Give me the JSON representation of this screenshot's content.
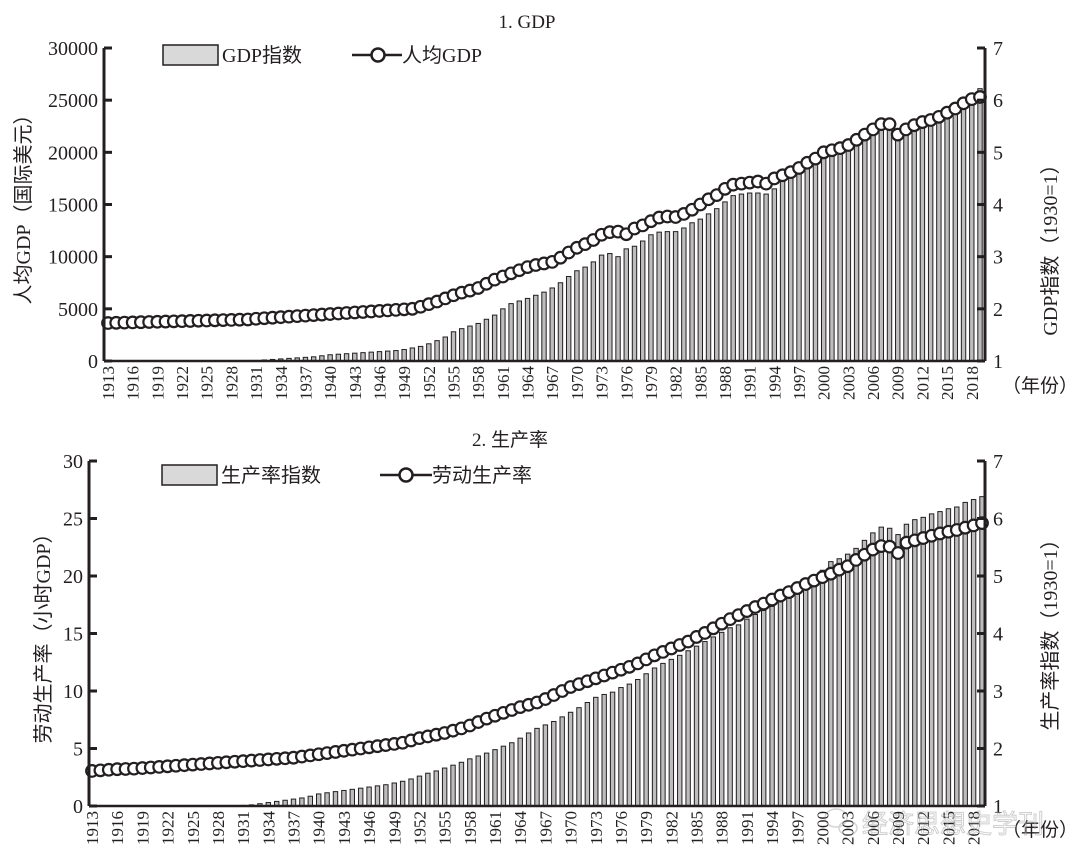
{
  "watermark": "经济思想史学刊",
  "x_unit_label": "（年份）",
  "years": [
    1913,
    1914,
    1915,
    1916,
    1917,
    1918,
    1919,
    1920,
    1921,
    1922,
    1923,
    1924,
    1925,
    1926,
    1927,
    1928,
    1929,
    1930,
    1931,
    1932,
    1933,
    1934,
    1935,
    1936,
    1937,
    1938,
    1939,
    1940,
    1941,
    1942,
    1943,
    1944,
    1945,
    1946,
    1947,
    1948,
    1949,
    1950,
    1951,
    1952,
    1953,
    1954,
    1955,
    1956,
    1957,
    1958,
    1959,
    1960,
    1961,
    1962,
    1963,
    1964,
    1965,
    1966,
    1967,
    1968,
    1969,
    1970,
    1971,
    1972,
    1973,
    1974,
    1975,
    1976,
    1977,
    1978,
    1979,
    1980,
    1981,
    1982,
    1983,
    1984,
    1985,
    1986,
    1987,
    1988,
    1989,
    1990,
    1991,
    1992,
    1993,
    1994,
    1995,
    1996,
    1997,
    1998,
    1999,
    2000,
    2001,
    2002,
    2003,
    2004,
    2005,
    2006,
    2007,
    2008,
    2009,
    2010,
    2011,
    2012,
    2013,
    2014,
    2015,
    2016,
    2017,
    2018,
    2019
  ],
  "chart_data": [
    {
      "type": "bar+line",
      "title": "1. GDP",
      "xlabel": "（年份）",
      "xticks": [
        "1913",
        "1916",
        "1919",
        "1922",
        "1925",
        "1928",
        "1931",
        "1934",
        "1937",
        "1940",
        "1943",
        "1946",
        "1949",
        "1952",
        "1955",
        "1958",
        "1961",
        "1964",
        "1967",
        "1970",
        "1973",
        "1976",
        "1979",
        "1982",
        "1985",
        "1988",
        "1991",
        "1994",
        "1997",
        "2000",
        "2003",
        "2006",
        "2009",
        "2012",
        "2015",
        "2018"
      ],
      "ylabel_left": "人均GDP（国际美元）",
      "ylabel_right": "GDP指数（1930=1）",
      "ylim_left": [
        0,
        30000
      ],
      "yticks_left": [
        "0",
        "5000",
        "10000",
        "15000",
        "20000",
        "25000",
        "30000"
      ],
      "ylim_right": [
        1,
        7
      ],
      "yticks_right": [
        "1",
        "2",
        "3",
        "4",
        "5",
        "6",
        "7"
      ],
      "legend_position": "top-left",
      "series": [
        {
          "name": "GDP指数",
          "kind": "bar",
          "axis": "right",
          "values": [
            1,
            1,
            1,
            1,
            1,
            1,
            1,
            1,
            1,
            1,
            1,
            1,
            1,
            1,
            1,
            1,
            1,
            1,
            1.01,
            1.02,
            1.03,
            1.04,
            1.05,
            1.06,
            1.07,
            1.08,
            1.1,
            1.12,
            1.13,
            1.14,
            1.15,
            1.16,
            1.17,
            1.18,
            1.19,
            1.2,
            1.22,
            1.25,
            1.28,
            1.33,
            1.39,
            1.46,
            1.56,
            1.62,
            1.67,
            1.72,
            1.8,
            1.88,
            2.0,
            2.1,
            2.15,
            2.2,
            2.26,
            2.32,
            2.4,
            2.5,
            2.62,
            2.73,
            2.8,
            2.9,
            3.03,
            3.06,
            3.0,
            3.15,
            3.2,
            3.3,
            3.42,
            3.47,
            3.48,
            3.48,
            3.55,
            3.65,
            3.72,
            3.82,
            3.92,
            4.05,
            4.17,
            4.2,
            4.22,
            4.22,
            4.2,
            4.3,
            4.45,
            4.55,
            4.65,
            4.75,
            4.88,
            5.0,
            5.05,
            5.1,
            5.2,
            5.3,
            5.42,
            5.52,
            5.6,
            5.58,
            5.28,
            5.42,
            5.5,
            5.55,
            5.6,
            5.68,
            5.78,
            5.88,
            5.98,
            6.1,
            6.22
          ]
        },
        {
          "name": "人均GDP",
          "kind": "line",
          "axis": "left",
          "values": [
            3640,
            3660,
            3680,
            3700,
            3720,
            3740,
            3760,
            3780,
            3800,
            3820,
            3840,
            3860,
            3880,
            3900,
            3920,
            3940,
            3960,
            3980,
            4050,
            4100,
            4150,
            4200,
            4250,
            4300,
            4350,
            4400,
            4450,
            4500,
            4550,
            4600,
            4650,
            4700,
            4750,
            4800,
            4850,
            4900,
            4950,
            5000,
            5200,
            5450,
            5700,
            6000,
            6300,
            6550,
            6750,
            7000,
            7400,
            7800,
            8100,
            8400,
            8700,
            9000,
            9200,
            9350,
            9500,
            9900,
            10400,
            10850,
            11200,
            11600,
            12100,
            12350,
            12400,
            12150,
            12700,
            13000,
            13400,
            13750,
            13850,
            13800,
            14100,
            14500,
            15000,
            15500,
            15900,
            16500,
            16900,
            17000,
            17100,
            17200,
            17000,
            17500,
            17800,
            18100,
            18500,
            19000,
            19400,
            20000,
            20200,
            20400,
            20700,
            21200,
            21700,
            22200,
            22700,
            22700,
            21700,
            22200,
            22600,
            22900,
            23100,
            23400,
            23800,
            24200,
            24700,
            25100,
            25300
          ]
        }
      ]
    },
    {
      "type": "bar+line",
      "title": "2. 生产率",
      "xlabel": "（年份）",
      "xticks": [
        "1913",
        "1916",
        "1919",
        "1922",
        "1925",
        "1928",
        "1931",
        "1934",
        "1937",
        "1940",
        "1943",
        "1946",
        "1949",
        "1952",
        "1955",
        "1958",
        "1961",
        "1964",
        "1967",
        "1970",
        "1973",
        "1976",
        "1979",
        "1982",
        "1985",
        "1988",
        "1991",
        "1994",
        "1997",
        "2000",
        "2003",
        "2006",
        "2009",
        "2012",
        "2015",
        "2018"
      ],
      "ylabel_left": "劳动生产率（小时GDP）",
      "ylabel_right": "生产率指数（1930=1）",
      "ylim_left": [
        0,
        30
      ],
      "yticks_left": [
        "0",
        "5",
        "10",
        "15",
        "20",
        "25",
        "30"
      ],
      "ylim_right": [
        1,
        7
      ],
      "yticks_right": [
        "1",
        "2",
        "3",
        "4",
        "5",
        "6",
        "7"
      ],
      "legend_position": "top-left",
      "series": [
        {
          "name": "生产率指数",
          "kind": "bar",
          "axis": "right",
          "values": [
            1,
            1,
            1,
            1,
            1,
            1,
            1,
            1,
            1,
            1,
            1,
            1,
            1,
            1,
            1,
            1,
            1,
            1,
            1.01,
            1.02,
            1.04,
            1.06,
            1.08,
            1.1,
            1.12,
            1.14,
            1.17,
            1.21,
            1.23,
            1.25,
            1.27,
            1.29,
            1.31,
            1.33,
            1.35,
            1.37,
            1.4,
            1.43,
            1.47,
            1.52,
            1.57,
            1.61,
            1.66,
            1.71,
            1.76,
            1.82,
            1.87,
            1.92,
            1.98,
            2.04,
            2.1,
            2.18,
            2.27,
            2.35,
            2.41,
            2.47,
            2.55,
            2.63,
            2.71,
            2.8,
            2.89,
            2.94,
            2.98,
            3.06,
            3.12,
            3.2,
            3.3,
            3.4,
            3.48,
            3.55,
            3.62,
            3.7,
            3.78,
            3.86,
            3.94,
            4.02,
            4.1,
            4.15,
            4.25,
            4.33,
            4.4,
            4.47,
            4.55,
            4.63,
            4.72,
            4.82,
            4.95,
            5.1,
            5.25,
            5.3,
            5.38,
            5.48,
            5.62,
            5.75,
            5.85,
            5.83,
            5.72,
            5.9,
            5.98,
            6.02,
            6.08,
            6.12,
            6.17,
            6.2,
            6.28,
            6.33,
            6.38
          ]
        },
        {
          "name": "劳动生产率",
          "kind": "line",
          "axis": "left",
          "values": [
            3.05,
            3.1,
            3.15,
            3.2,
            3.22,
            3.25,
            3.3,
            3.35,
            3.4,
            3.45,
            3.5,
            3.55,
            3.6,
            3.65,
            3.7,
            3.75,
            3.8,
            3.85,
            3.9,
            3.95,
            4.0,
            4.05,
            4.1,
            4.15,
            4.2,
            4.3,
            4.4,
            4.5,
            4.6,
            4.7,
            4.8,
            4.9,
            5.0,
            5.1,
            5.2,
            5.3,
            5.4,
            5.5,
            5.7,
            5.9,
            6.05,
            6.2,
            6.35,
            6.55,
            6.75,
            7.0,
            7.3,
            7.6,
            7.85,
            8.1,
            8.35,
            8.6,
            8.8,
            9.0,
            9.3,
            9.65,
            10.0,
            10.35,
            10.6,
            10.85,
            11.1,
            11.35,
            11.6,
            11.85,
            12.1,
            12.4,
            12.75,
            13.1,
            13.4,
            13.7,
            14.0,
            14.3,
            14.7,
            15.05,
            15.45,
            15.85,
            16.25,
            16.6,
            16.95,
            17.3,
            17.6,
            17.95,
            18.3,
            18.6,
            18.95,
            19.3,
            19.6,
            19.9,
            20.2,
            20.55,
            20.85,
            21.4,
            21.85,
            22.3,
            22.6,
            22.55,
            22.0,
            22.9,
            23.1,
            23.3,
            23.5,
            23.7,
            23.85,
            24.0,
            24.2,
            24.4,
            24.6
          ]
        }
      ]
    }
  ]
}
